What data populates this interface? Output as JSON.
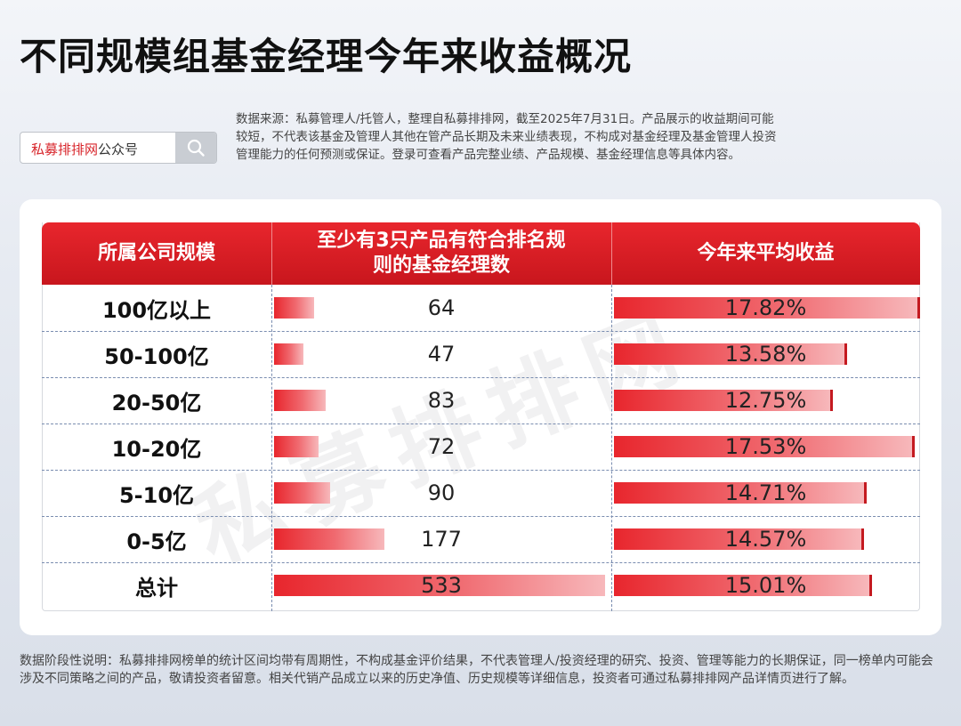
{
  "title": "不同规模组基金经理今年来收益概况",
  "search": {
    "brand": "私募排排网",
    "suffix": "公众号",
    "icon": "search-icon"
  },
  "source_note": "数据来源：私募管理人/托管人，整理自私募排排网，截至2025年7月31日。产品展示的收益期间可能较短，不代表该基金及管理人其他在管产品长期及未来业绩表现，不构成对基金经理及基金管理人投资管理能力的任何预测或保证。登录可查看产品完整业绩、产品规模、基金经理信息等具体内容。",
  "watermark": "私募排排网",
  "chart_data": {
    "type": "table",
    "columns": [
      "所属公司规模",
      "至少有3只产品有符合排名规则的基金经理数",
      "今年来平均收益"
    ],
    "column_lines": [
      [
        "所属公司规模"
      ],
      [
        "至少有3只产品有符合排名规",
        "则的基金经理数"
      ],
      [
        "今年来平均收益"
      ]
    ],
    "rows": [
      {
        "label": "100亿以上",
        "count": 64,
        "return": 17.82,
        "return_text": "17.82%"
      },
      {
        "label": "50-100亿",
        "count": 47,
        "return": 13.58,
        "return_text": "13.58%"
      },
      {
        "label": "20-50亿",
        "count": 83,
        "return": 12.75,
        "return_text": "12.75%"
      },
      {
        "label": "10-20亿",
        "count": 72,
        "return": 17.53,
        "return_text": "17.53%"
      },
      {
        "label": "5-10亿",
        "count": 90,
        "return": 14.71,
        "return_text": "14.71%"
      },
      {
        "label": "0-5亿",
        "count": 177,
        "return": 14.57,
        "return_text": "14.57%"
      },
      {
        "label": "总计",
        "count": 533,
        "return": 15.01,
        "return_text": "15.01%"
      }
    ],
    "bar_color": "#e8262d",
    "header_color": "#d91e25"
  },
  "footer_note": "数据阶段性说明：私募排排网榜单的统计区间均带有周期性，不构成基金评价结果，不代表管理人/投资经理的研究、投资、管理等能力的长期保证，同一榜单内可能会涉及不同策略之间的产品，敬请投资者留意。相关代销产品成立以来的历史净值、历史规模等详细信息，投资者可通过私募排排网产品详情页进行了解。"
}
